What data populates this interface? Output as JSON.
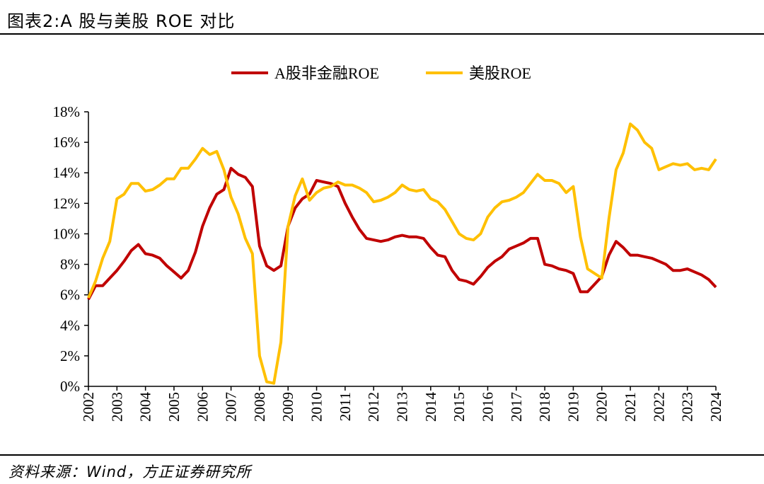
{
  "header": {
    "title": "图表2:A 股与美股 ROE 对比"
  },
  "footer": {
    "source": "资料来源：Wind，方正证券研究所"
  },
  "chart_data": {
    "type": "line",
    "title": "",
    "xlabel": "",
    "ylabel": "",
    "ylim": [
      0,
      18
    ],
    "y_ticks": [
      "0%",
      "2%",
      "4%",
      "6%",
      "8%",
      "10%",
      "12%",
      "14%",
      "16%",
      "18%"
    ],
    "x_ticks": [
      "2002",
      "2003",
      "2004",
      "2005",
      "2006",
      "2007",
      "2008",
      "2009",
      "2010",
      "2011",
      "2012",
      "2013",
      "2014",
      "2015",
      "2016",
      "2017",
      "2018",
      "2019",
      "2020",
      "2021",
      "2022",
      "2023",
      "2024"
    ],
    "x_start": 2002,
    "x_step": 0.25,
    "legend_position": "top",
    "grid": false,
    "series": [
      {
        "name": "A股非金融ROE",
        "color": "#C00000",
        "values": [
          5.7,
          6.6,
          6.6,
          7.1,
          7.6,
          8.2,
          8.9,
          9.3,
          8.7,
          8.6,
          8.4,
          7.9,
          7.5,
          7.1,
          7.6,
          8.8,
          10.5,
          11.7,
          12.6,
          12.9,
          14.3,
          13.9,
          13.7,
          13.1,
          9.2,
          7.9,
          7.6,
          7.9,
          10.5,
          11.7,
          12.3,
          12.6,
          13.5,
          13.4,
          13.3,
          13.1,
          12.0,
          11.1,
          10.3,
          9.7,
          9.6,
          9.5,
          9.6,
          9.8,
          9.9,
          9.8,
          9.8,
          9.7,
          9.1,
          8.6,
          8.5,
          7.6,
          7.0,
          6.9,
          6.7,
          7.2,
          7.8,
          8.2,
          8.5,
          9.0,
          9.2,
          9.4,
          9.7,
          9.7,
          8.0,
          7.9,
          7.7,
          7.6,
          7.4,
          6.2,
          6.2,
          6.7,
          7.2,
          8.6,
          9.5,
          9.1,
          8.6,
          8.6,
          8.5,
          8.4,
          8.2,
          8.0,
          7.6,
          7.6,
          7.7,
          7.5,
          7.3,
          7.0,
          6.5
        ]
      },
      {
        "name": "美股ROE",
        "color": "#FFC000",
        "values": [
          5.8,
          6.9,
          8.4,
          9.5,
          12.3,
          12.6,
          13.3,
          13.3,
          12.8,
          12.9,
          13.2,
          13.6,
          13.6,
          14.3,
          14.3,
          14.9,
          15.6,
          15.2,
          15.4,
          14.2,
          12.4,
          11.3,
          9.7,
          8.7,
          2.0,
          0.3,
          0.2,
          2.9,
          10.5,
          12.5,
          13.6,
          12.2,
          12.7,
          13.0,
          13.1,
          13.4,
          13.2,
          13.2,
          13.0,
          12.7,
          12.1,
          12.2,
          12.4,
          12.7,
          13.2,
          12.9,
          12.8,
          12.9,
          12.3,
          12.1,
          11.6,
          10.8,
          10.0,
          9.7,
          9.6,
          10.0,
          11.1,
          11.7,
          12.1,
          12.2,
          12.4,
          12.7,
          13.3,
          13.9,
          13.5,
          13.5,
          13.3,
          12.7,
          13.1,
          9.8,
          7.7,
          7.4,
          7.1,
          11.0,
          14.2,
          15.3,
          17.2,
          16.8,
          16.0,
          15.6,
          14.2,
          14.4,
          14.6,
          14.5,
          14.6,
          14.2,
          14.3,
          14.2,
          14.9
        ]
      }
    ]
  }
}
